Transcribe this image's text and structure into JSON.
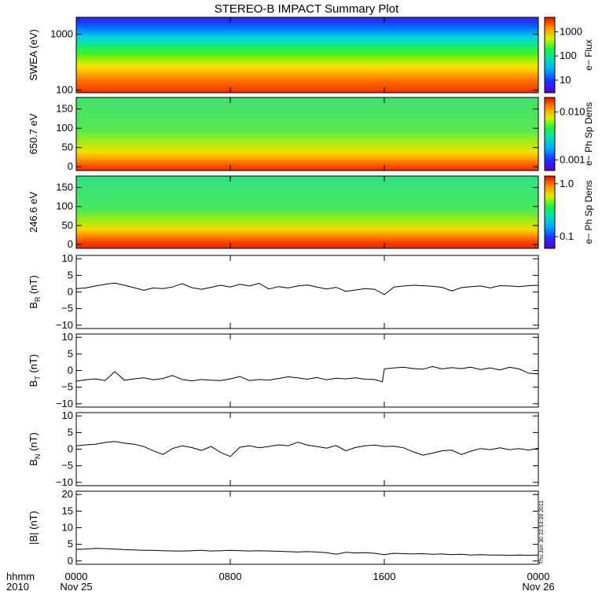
{
  "chart_data": {
    "title": "STEREO-B IMPACT Summary Plot",
    "type": "multi-panel",
    "x_axis": {
      "ticks": [
        "0000",
        "0800",
        "1600",
        "0000"
      ],
      "tick_hours": [
        0,
        8,
        16,
        24
      ],
      "sub_labels": [
        "Nov 25",
        "",
        "",
        "Nov 26"
      ],
      "corner_labels": [
        "hhmm",
        "2010"
      ],
      "range_hours": [
        0,
        24
      ]
    },
    "stamp": "Thu Jun 30 22:53:39 2011",
    "panels": [
      {
        "id": "swea",
        "type": "heatmap",
        "ylabel": "SWEA (eV)",
        "yscale": "log",
        "ylim": [
          90,
          2000
        ],
        "yticks": [
          "1000",
          "100"
        ],
        "ytick_values": [
          1000,
          100
        ],
        "colorbar": {
          "label": "e− Flux",
          "scale": "log",
          "ticks": [
            "1000",
            "100",
            "10"
          ],
          "tick_values": [
            1000,
            100,
            10
          ],
          "range": [
            3,
            4000
          ]
        }
      },
      {
        "id": "pad650",
        "type": "heatmap",
        "ylabel": "650.7 eV",
        "ylim": [
          -10,
          180
        ],
        "yticks": [
          "150",
          "100",
          "50",
          "0"
        ],
        "ytick_values": [
          150,
          100,
          50,
          0
        ],
        "colorbar": {
          "label": "e− Ph Sp Dens",
          "scale": "log",
          "ticks": [
            "0.010",
            "0.001"
          ],
          "tick_values": [
            0.01,
            0.001
          ],
          "range": [
            0.0006,
            0.02
          ]
        }
      },
      {
        "id": "pad246",
        "type": "heatmap",
        "ylabel": "246.6 eV",
        "ylim": [
          -10,
          180
        ],
        "yticks": [
          "150",
          "100",
          "50",
          "0"
        ],
        "ytick_values": [
          150,
          100,
          50,
          0
        ],
        "colorbar": {
          "label": "e− Ph Sp Dens",
          "scale": "log",
          "ticks": [
            "1.0",
            "0.1"
          ],
          "tick_values": [
            1.0,
            0.1
          ],
          "range": [
            0.06,
            1.4
          ]
        }
      },
      {
        "id": "br",
        "type": "line",
        "ylabel": "B",
        "ylabel_sub": "R",
        "ylabel_unit": "(nT)",
        "ylim": [
          -11,
          11
        ],
        "yticks": [
          "10",
          "5",
          "0",
          "−5",
          "−10"
        ],
        "ytick_values": [
          10,
          5,
          0,
          -5,
          -10
        ],
        "x_hours": [
          0,
          0.5,
          1,
          1.5,
          2,
          2.5,
          3,
          3.5,
          4,
          4.5,
          5,
          5.5,
          6,
          6.5,
          7,
          7.5,
          8,
          8.5,
          9,
          9.5,
          10,
          10.5,
          11,
          11.5,
          12,
          12.5,
          13,
          13.5,
          14,
          14.5,
          15,
          15.5,
          16,
          16.5,
          17,
          17.5,
          18,
          18.5,
          19,
          19.5,
          20,
          20.5,
          21,
          21.5,
          22,
          22.5,
          23,
          23.5,
          24
        ],
        "values": [
          1.0,
          1.2,
          1.8,
          2.3,
          2.7,
          2.0,
          1.3,
          0.5,
          1.2,
          1.0,
          1.5,
          2.5,
          1.3,
          0.8,
          1.4,
          2.0,
          1.5,
          2.3,
          1.8,
          2.6,
          0.9,
          1.6,
          1.2,
          1.8,
          2.1,
          1.5,
          0.9,
          1.4,
          0.2,
          0.6,
          1.0,
          0.8,
          -0.8,
          1.5,
          1.8,
          2.0,
          1.9,
          1.7,
          1.4,
          0.3,
          1.3,
          1.6,
          1.8,
          1.2,
          1.9,
          1.8,
          1.6,
          1.9,
          2.0
        ]
      },
      {
        "id": "bt",
        "type": "line",
        "ylabel": "B",
        "ylabel_sub": "T",
        "ylabel_unit": "(nT)",
        "ylim": [
          -11,
          11
        ],
        "yticks": [
          "10",
          "5",
          "0",
          "−5",
          "−10"
        ],
        "ytick_values": [
          10,
          5,
          0,
          -5,
          -10
        ],
        "x_hours": [
          0,
          0.5,
          1,
          1.5,
          2,
          2.5,
          3,
          3.5,
          4,
          4.5,
          5,
          5.5,
          6,
          6.5,
          7,
          7.5,
          8,
          8.5,
          9,
          9.5,
          10,
          10.5,
          11,
          11.5,
          12,
          12.5,
          13,
          13.5,
          14,
          14.5,
          15,
          15.5,
          15.9,
          16,
          16.5,
          17,
          17.5,
          18,
          18.5,
          19,
          19.5,
          20,
          20.5,
          21,
          21.5,
          22,
          22.5,
          23,
          23.5,
          24
        ],
        "values": [
          -3.2,
          -2.8,
          -2.5,
          -3.0,
          -0.3,
          -2.9,
          -2.5,
          -2.2,
          -2.8,
          -2.4,
          -1.5,
          -2.7,
          -3.1,
          -2.7,
          -2.9,
          -3.0,
          -2.5,
          -1.8,
          -3.0,
          -2.7,
          -2.9,
          -2.4,
          -1.9,
          -2.2,
          -2.6,
          -2.1,
          -2.8,
          -2.3,
          -2.5,
          -2.2,
          -2.6,
          -2.7,
          -3.4,
          0.5,
          0.8,
          1.0,
          0.6,
          0.4,
          1.2,
          0.5,
          0.9,
          0.6,
          1.0,
          0.3,
          0.8,
          0.2,
          1.0,
          0.5,
          -0.8,
          -1.0
        ]
      },
      {
        "id": "bn",
        "type": "line",
        "ylabel": "B",
        "ylabel_sub": "N",
        "ylabel_unit": "(nT)",
        "ylim": [
          -11,
          11
        ],
        "yticks": [
          "10",
          "5",
          "0",
          "−5",
          "−10"
        ],
        "ytick_values": [
          10,
          5,
          0,
          -5,
          -10
        ],
        "x_hours": [
          0,
          0.5,
          1,
          1.5,
          2,
          2.5,
          3,
          3.5,
          4,
          4.5,
          5,
          5.5,
          6,
          6.5,
          7,
          7.5,
          8,
          8.5,
          9,
          9.5,
          10,
          10.5,
          11,
          11.5,
          12,
          12.5,
          13,
          13.5,
          14,
          14.5,
          15,
          15.5,
          16,
          16.5,
          17,
          17.5,
          18,
          18.5,
          19,
          19.5,
          20,
          20.5,
          21,
          21.5,
          22,
          22.5,
          23,
          23.5,
          24
        ],
        "values": [
          1.0,
          1.3,
          1.5,
          2.0,
          2.3,
          1.8,
          1.5,
          0.8,
          -0.5,
          -1.6,
          0.2,
          1.0,
          0.5,
          -0.4,
          0.8,
          -1.0,
          -2.2,
          0.6,
          1.0,
          0.4,
          0.8,
          1.3,
          1.0,
          2.1,
          1.2,
          0.8,
          0.3,
          1.1,
          -0.5,
          0.5,
          1.0,
          1.2,
          0.8,
          0.9,
          0.4,
          -0.8,
          -1.8,
          -1.2,
          -0.5,
          -0.3,
          -1.6,
          -0.6,
          0.2,
          -0.2,
          0.4,
          -0.2,
          0.2,
          -0.3,
          0.3
        ]
      },
      {
        "id": "bmag",
        "type": "line",
        "ylabel": "|B|",
        "ylabel_unit": "(nT)",
        "ylim": [
          -1,
          21
        ],
        "yticks": [
          "20",
          "15",
          "10",
          "5",
          "0"
        ],
        "ytick_values": [
          20,
          15,
          10,
          5,
          0
        ],
        "x_hours": [
          0,
          0.5,
          1,
          1.5,
          2,
          2.5,
          3,
          3.5,
          4,
          4.5,
          5,
          5.5,
          6,
          6.5,
          7,
          7.5,
          8,
          8.5,
          9,
          9.5,
          10,
          10.5,
          11,
          11.5,
          12,
          12.5,
          13,
          13.5,
          14,
          14.5,
          15,
          15.5,
          16,
          16.5,
          17,
          17.5,
          18,
          18.5,
          19,
          19.5,
          20,
          20.5,
          21,
          21.5,
          22,
          22.5,
          23,
          23.5,
          24
        ],
        "values": [
          3.5,
          3.6,
          3.8,
          3.7,
          3.6,
          3.4,
          3.3,
          3.2,
          3.2,
          3.1,
          3.0,
          3.0,
          3.1,
          3.2,
          3.0,
          3.1,
          3.2,
          3.1,
          3.0,
          3.1,
          3.0,
          2.9,
          2.8,
          2.7,
          2.8,
          2.7,
          2.5,
          2.0,
          2.6,
          2.4,
          2.5,
          2.3,
          1.9,
          2.3,
          2.2,
          2.1,
          2.2,
          2.0,
          2.1,
          1.9,
          2.0,
          1.8,
          1.9,
          1.8,
          1.8,
          1.7,
          1.8,
          1.7,
          1.8
        ]
      }
    ]
  }
}
